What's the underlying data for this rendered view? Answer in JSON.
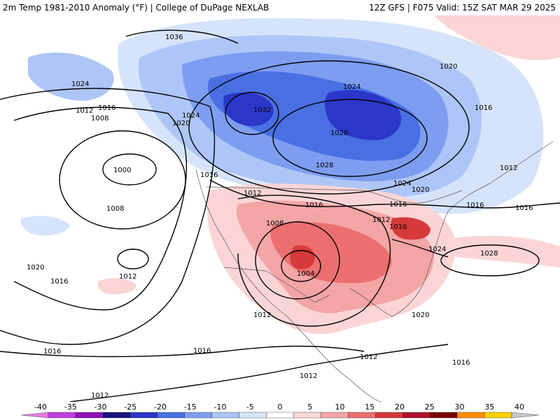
{
  "header": {
    "title_left": "2m Temp 1981-2010 Anomaly (°F) | College of DuPage NEXLAB",
    "title_right": "12Z GFS | F075 Valid: 15Z SAT MAR 29 2025"
  },
  "map": {
    "variable": "2m temperature anomaly",
    "units": "°F",
    "contour_labels": [
      "1036",
      "1032",
      "1028",
      "1028",
      "1028",
      "1024",
      "1024",
      "1024",
      "1024",
      "1024",
      "1020",
      "1020",
      "1020",
      "1020",
      "1020",
      "1016",
      "1016",
      "1016",
      "1016",
      "1016",
      "1016",
      "1016",
      "1016",
      "1016",
      "1016",
      "1016",
      "1016",
      "1012",
      "1012",
      "1012",
      "1012",
      "1012",
      "1012",
      "1012",
      "1012",
      "1012",
      "1008",
      "1008",
      "1008",
      "1004",
      "1000"
    ],
    "anomaly_colors": {
      "strong_cold": "#2a37c9",
      "cold": "#4a6fe3",
      "moderate_cold": "#7d9df0",
      "cool": "#aec6f7",
      "slight_cool": "#d6e4fb",
      "slight_warm": "#fbd5d5",
      "warm": "#f4a5a5",
      "moderate_warm": "#ec6f6f",
      "hot": "#d63a3a",
      "very_hot": "#b0102a"
    }
  },
  "colorbar": {
    "ticks": [
      "-40",
      "-35",
      "-30",
      "-25",
      "-20",
      "-15",
      "-10",
      "-5",
      "0",
      "5",
      "10",
      "15",
      "20",
      "25",
      "30",
      "35",
      "40"
    ],
    "colors": [
      "#e87ee8",
      "#c040e0",
      "#9010b8",
      "#1a1280",
      "#2a37c9",
      "#4a6fe3",
      "#7d9df0",
      "#aec6f7",
      "#d6e4fb",
      "#ffffff",
      "#fbd5d5",
      "#f4a5a5",
      "#ec6f6f",
      "#d63a3a",
      "#b0102a",
      "#7a0000",
      "#ff8c00",
      "#ffd000",
      "#c8c8c8"
    ]
  }
}
